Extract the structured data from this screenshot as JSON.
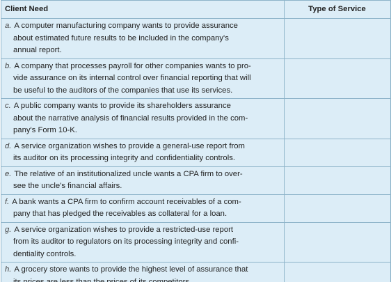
{
  "table": {
    "header": [
      "Client Need",
      "Type of Service"
    ],
    "rows": [
      {
        "letter": "a.",
        "lines": [
          "A computer manufacturing company wants to provide assurance",
          "about estimated future results to be included in the company's",
          "annual report."
        ]
      },
      {
        "letter": "b.",
        "lines": [
          "A company that processes payroll for other companies wants to pro-",
          "vide assurance on its internal control over financial reporting that will",
          "be useful to the auditors of the companies that use its services."
        ]
      },
      {
        "letter": "c.",
        "lines": [
          "A public company wants to provide its shareholders assurance",
          "about the narrative analysis of financial results provided in the com-",
          "pany's Form 10-K."
        ]
      },
      {
        "letter": "d.",
        "lines": [
          "A service organization wishes to provide a general-use report from",
          "its auditor on its processing integrity and confidentiality controls."
        ]
      },
      {
        "letter": "e.",
        "lines": [
          "The relative of an institutionalized uncle wants a CPA firm to over-",
          "see the uncle's financial affairs."
        ]
      },
      {
        "letter": "f.",
        "lines": [
          "A bank wants a CPA firm to confirm account receivables of a com-",
          "pany that has pledged the receivables as collateral for a loan."
        ]
      },
      {
        "letter": "g.",
        "lines": [
          "A service organization wishes to provide a restricted-use report",
          "from its auditor to regulators on its processing integrity and confi-",
          "dentiality controls."
        ]
      },
      {
        "letter": "h.",
        "lines": [
          "A grocery store wants to provide the highest level of assurance that",
          "its prices are less than the prices of its competitors."
        ]
      }
    ]
  }
}
